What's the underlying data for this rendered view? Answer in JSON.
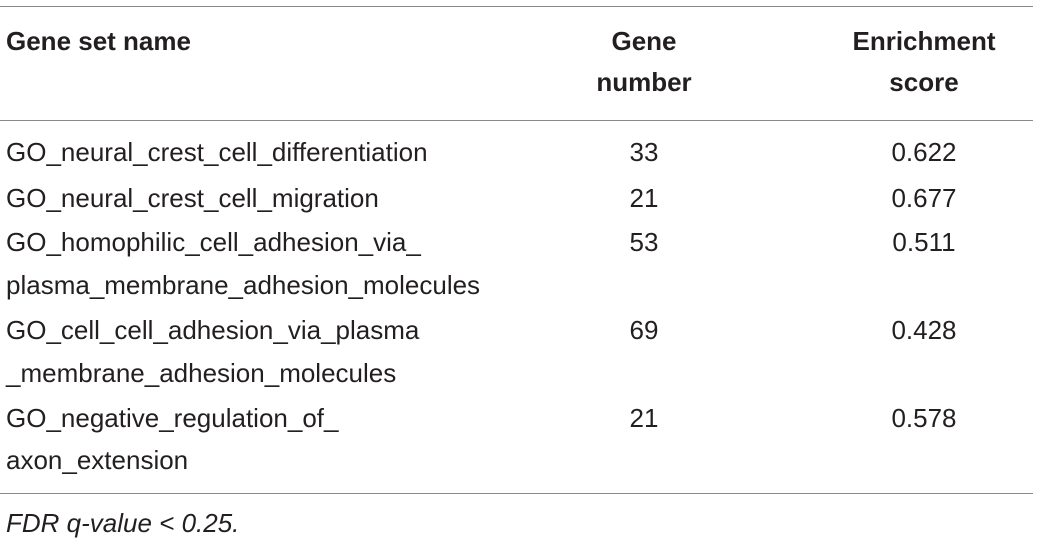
{
  "table": {
    "headers": {
      "name": "Gene set name",
      "number_line1": "Gene",
      "number_line2": "number",
      "score_line1": "Enrichment",
      "score_line2": "score"
    },
    "rows": [
      {
        "name_line1": "GO_neural_crest_cell_differentiation",
        "name_line2": "",
        "gene_number": "33",
        "enrichment_score": "0.622"
      },
      {
        "name_line1": "GO_neural_crest_cell_migration",
        "name_line2": "",
        "gene_number": "21",
        "enrichment_score": "0.677"
      },
      {
        "name_line1": "GO_homophilic_cell_adhesion_via_",
        "name_line2": "plasma_membrane_adhesion_molecules",
        "gene_number": "53",
        "enrichment_score": "0.511"
      },
      {
        "name_line1": "GO_cell_cell_adhesion_via_plasma",
        "name_line2": "_membrane_adhesion_molecules",
        "gene_number": "69",
        "enrichment_score": "0.428"
      },
      {
        "name_line1": "GO_negative_regulation_of_",
        "name_line2": "axon_extension",
        "gene_number": "21",
        "enrichment_score": "0.578"
      }
    ]
  },
  "footnote": "FDR q-value < 0.25."
}
